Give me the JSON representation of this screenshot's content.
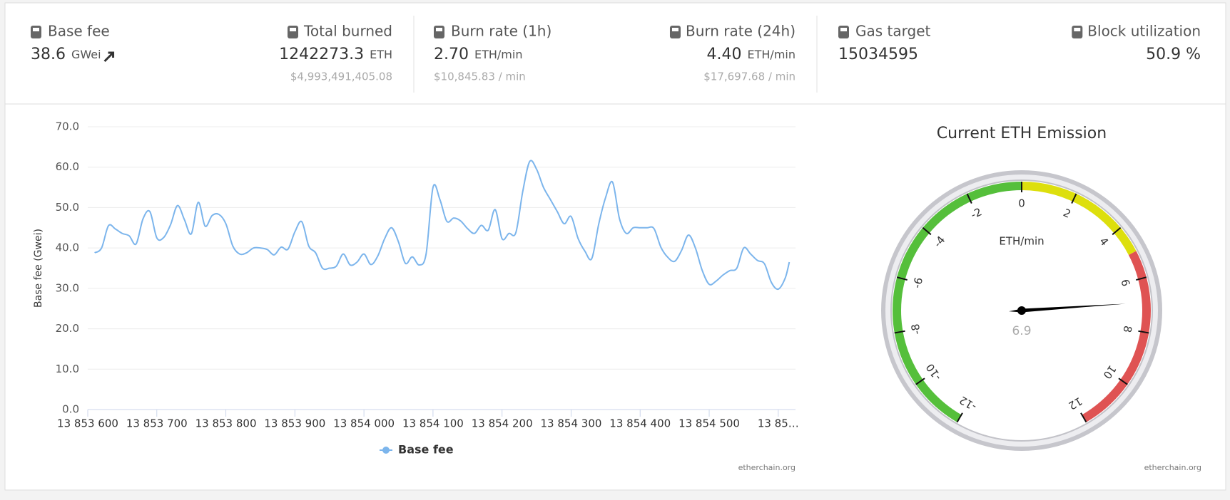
{
  "stats": [
    {
      "label": "Base fee",
      "value": "38.6",
      "unit": "GWei"
    },
    {
      "label": "Total burned",
      "value": "1242273.3",
      "unit": "ETH",
      "sub": "$4,993,491,405.08"
    },
    {
      "label": "Burn rate (1h)",
      "value": "2.70",
      "unit": "ETH/min",
      "sub": "$10,845.83 / min"
    },
    {
      "label": "Burn rate (24h)",
      "value": "4.40",
      "unit": "ETH/min",
      "sub": "$17,697.68 / min"
    },
    {
      "label": "Gas target",
      "value": "15034595"
    },
    {
      "label": "Block utilization",
      "value": "50.9 %"
    }
  ],
  "chart_data": [
    {
      "type": "line",
      "y_label": "Base fee (Gwei)",
      "credit": "etherchain.org",
      "grid": true,
      "xlim": [
        13853600,
        13854625
      ],
      "ylim": [
        0,
        70
      ],
      "xticks": [
        {
          "value": 13853600,
          "label": "13 853 600"
        },
        {
          "value": 13853700,
          "label": "13 853 700"
        },
        {
          "value": 13853800,
          "label": "13 853 800"
        },
        {
          "value": 13853900,
          "label": "13 853 900"
        },
        {
          "value": 13854000,
          "label": "13 854 000"
        },
        {
          "value": 13854100,
          "label": "13 854 100"
        },
        {
          "value": 13854200,
          "label": "13 854 200"
        },
        {
          "value": 13854300,
          "label": "13 854 300"
        },
        {
          "value": 13854400,
          "label": "13 854 400"
        },
        {
          "value": 13854500,
          "label": "13 854 500"
        },
        {
          "value": 13854600,
          "label": "13 85…"
        }
      ],
      "yticks": [
        {
          "value": 0,
          "label": "0.0"
        },
        {
          "value": 10,
          "label": "10.0"
        },
        {
          "value": 20,
          "label": "20.0"
        },
        {
          "value": 30,
          "label": "30.0"
        },
        {
          "value": 40,
          "label": "40.0"
        },
        {
          "value": 50,
          "label": "50.0"
        },
        {
          "value": 60,
          "label": "60.0"
        },
        {
          "value": 70,
          "label": "70.0"
        }
      ],
      "x": [
        13853610,
        13853620,
        13853630,
        13853640,
        13853650,
        13853660,
        13853670,
        13853680,
        13853690,
        13853700,
        13853710,
        13853720,
        13853730,
        13853740,
        13853750,
        13853760,
        13853770,
        13853780,
        13853790,
        13853800,
        13853810,
        13853820,
        13853830,
        13853840,
        13853850,
        13853860,
        13853870,
        13853880,
        13853890,
        13853900,
        13853910,
        13853920,
        13853930,
        13853940,
        13853950,
        13853960,
        13853970,
        13853980,
        13853990,
        13854000,
        13854010,
        13854020,
        13854030,
        13854040,
        13854050,
        13854060,
        13854070,
        13854080,
        13854090,
        13854100,
        13854110,
        13854120,
        13854130,
        13854140,
        13854150,
        13854160,
        13854170,
        13854180,
        13854190,
        13854200,
        13854210,
        13854220,
        13854230,
        13854240,
        13854250,
        13854260,
        13854270,
        13854280,
        13854290,
        13854300,
        13854310,
        13854320,
        13854330,
        13854340,
        13854350,
        13854360,
        13854370,
        13854380,
        13854390,
        13854400,
        13854410,
        13854420,
        13854430,
        13854440,
        13854450,
        13854460,
        13854470,
        13854480,
        13854490,
        13854500,
        13854510,
        13854520,
        13854530,
        13854540,
        13854550,
        13854560,
        13854570,
        13854580,
        13854590,
        13854600,
        13854610,
        13854616
      ],
      "series": [
        {
          "name": "Base fee",
          "color": "#7cb5ec",
          "values": [
            38.8,
            40,
            45.5,
            44.7,
            43.6,
            43,
            41,
            47.2,
            49,
            42.5,
            42.6,
            45.8,
            50.5,
            47,
            43.5,
            51.3,
            45.4,
            48,
            48.3,
            46,
            40.5,
            38.5,
            38.8,
            40,
            40,
            39.6,
            38.3,
            40.2,
            39.7,
            44,
            46.5,
            40.5,
            38.8,
            35,
            35,
            35.5,
            38.5,
            35.8,
            36.5,
            38.5,
            35.9,
            38,
            42.3,
            45,
            41.5,
            36.2,
            37.8,
            35.8,
            38.5,
            55,
            52,
            46.6,
            47.4,
            46.7,
            44.8,
            43.6,
            45.6,
            44.4,
            49.5,
            42.3,
            43.6,
            43.8,
            54,
            61.4,
            59.5,
            55,
            52,
            49,
            46,
            47.8,
            42.4,
            39.2,
            37.4,
            45.9,
            52.5,
            56.3,
            47.3,
            43.6,
            45,
            45,
            45,
            44.8,
            40.2,
            37.7,
            36.7,
            39.4,
            43.2,
            40,
            34.4,
            31,
            31.8,
            33.3,
            34.4,
            35,
            40,
            38.5,
            36.9,
            36.1,
            31.5,
            29.8,
            32.5,
            36.5
          ]
        }
      ]
    },
    {
      "type": "gauge",
      "title": "Current ETH Emission",
      "unit_label": "ETH/min",
      "credit": "etherchain.org",
      "value": 6.9,
      "ylim": [
        -12,
        12
      ],
      "yticks": [
        -12,
        -10,
        -8,
        -6,
        -4,
        -2,
        0,
        2,
        4,
        6,
        8,
        10,
        12
      ],
      "bands": [
        {
          "from": -12,
          "to": 0,
          "color": "#55bf3b"
        },
        {
          "from": 0,
          "to": 5,
          "color": "#dddf0d"
        },
        {
          "from": 5,
          "to": 12,
          "color": "#df5353"
        }
      ]
    }
  ]
}
